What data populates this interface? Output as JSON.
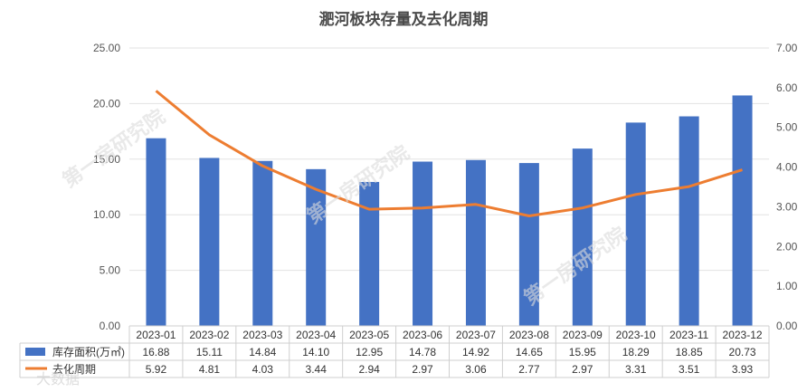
{
  "chart_data": {
    "type": "bar",
    "title": "淝河板块存量及去化周期",
    "categories": [
      "2023-01",
      "2023-02",
      "2023-03",
      "2023-04",
      "2023-05",
      "2023-06",
      "2023-07",
      "2023-08",
      "2023-09",
      "2023-10",
      "2023-11",
      "2023-12"
    ],
    "series": [
      {
        "name": "库存面积(万㎡)",
        "type": "bar",
        "axis": "left",
        "color": "#4472C4",
        "values": [
          16.88,
          15.11,
          14.84,
          14.1,
          12.95,
          14.78,
          14.92,
          14.65,
          15.95,
          18.29,
          18.85,
          20.73
        ]
      },
      {
        "name": "去化周期",
        "type": "line",
        "axis": "right",
        "color": "#ED7D31",
        "values": [
          5.92,
          4.81,
          4.03,
          3.44,
          2.94,
          2.97,
          3.06,
          2.77,
          2.97,
          3.31,
          3.51,
          3.93
        ]
      }
    ],
    "ylim_left": [
      0,
      25
    ],
    "ylim_right": [
      0,
      7
    ],
    "yticks_left": [
      "0.00",
      "5.00",
      "10.00",
      "15.00",
      "20.00",
      "25.00"
    ],
    "yticks_right": [
      "0.00",
      "1.00",
      "2.00",
      "3.00",
      "4.00",
      "5.00",
      "6.00",
      "7.00"
    ],
    "grid": true,
    "legend_placement": "data-table",
    "table_labels": {
      "bar": [
        "16.88",
        "15.11",
        "14.84",
        "14.10",
        "12.95",
        "14.78",
        "14.92",
        "14.65",
        "15.95",
        "18.29",
        "18.85",
        "20.73"
      ],
      "line": [
        "5.92",
        "4.81",
        "4.03",
        "3.44",
        "2.94",
        "2.97",
        "3.06",
        "2.77",
        "2.97",
        "3.31",
        "3.51",
        "3.93"
      ]
    }
  },
  "watermark": {
    "text": "第一房研究院",
    "footer": "大数据"
  }
}
